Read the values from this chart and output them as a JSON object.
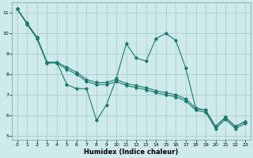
{
  "xlabel": "Humidex (Indice chaleur)",
  "xlim": [
    -0.5,
    23.5
  ],
  "ylim": [
    4.8,
    11.5
  ],
  "yticks": [
    5,
    6,
    7,
    8,
    9,
    10,
    11
  ],
  "xticks": [
    0,
    1,
    2,
    3,
    4,
    5,
    6,
    7,
    8,
    9,
    10,
    11,
    12,
    13,
    14,
    15,
    16,
    17,
    18,
    19,
    20,
    21,
    22,
    23
  ],
  "bg_color": "#ceeaea",
  "grid_color": "#a8cece",
  "line_color": "#1a7a6e",
  "line1_y": [
    11.2,
    10.5,
    9.8,
    8.6,
    8.6,
    7.5,
    7.3,
    7.3,
    5.75,
    6.5,
    7.8,
    9.5,
    8.8,
    8.65,
    9.75,
    10.0,
    9.65,
    8.3,
    6.35,
    6.25,
    5.45,
    5.9,
    5.45,
    5.7
  ],
  "line2_y": [
    11.2,
    10.5,
    9.8,
    8.6,
    8.6,
    8.35,
    8.1,
    7.75,
    7.6,
    7.6,
    7.75,
    7.55,
    7.45,
    7.35,
    7.2,
    7.1,
    7.0,
    6.8,
    6.35,
    6.25,
    5.45,
    5.9,
    5.45,
    5.7
  ],
  "line3_y": [
    11.2,
    10.45,
    9.75,
    8.55,
    8.55,
    8.25,
    8.0,
    7.65,
    7.5,
    7.5,
    7.65,
    7.45,
    7.35,
    7.25,
    7.1,
    7.0,
    6.9,
    6.7,
    6.25,
    6.15,
    5.35,
    5.8,
    5.35,
    5.6
  ]
}
